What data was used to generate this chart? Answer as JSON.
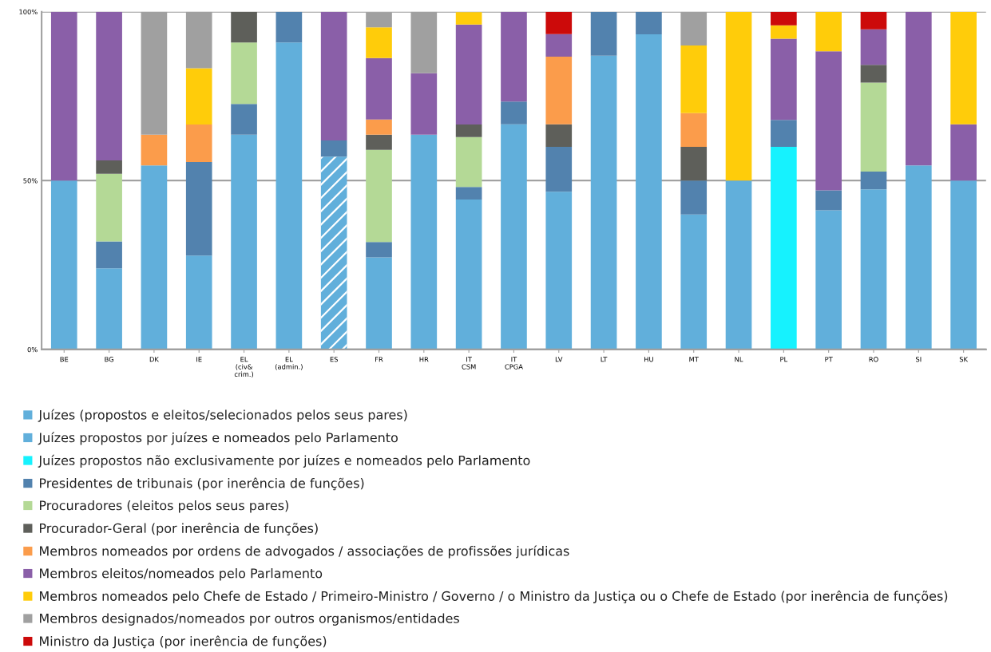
{
  "chart_data": {
    "type": "bar",
    "stacked": true,
    "categories": [
      "BE",
      "BG",
      "DK",
      "IE",
      "EL\n(civ&\ncrim.)",
      "EL\n(admin.)",
      "ES",
      "FR",
      "HR",
      "IT\nCSM",
      "IT\nCPGA",
      "LV",
      "LT",
      "HU",
      "MT",
      "NL",
      "PL",
      "PT",
      "RO",
      "SI",
      "SK"
    ],
    "ylim": [
      0,
      100
    ],
    "yticks": [
      {
        "value": 0,
        "label": "0%"
      },
      {
        "value": 50,
        "label": "50%"
      },
      {
        "value": 100,
        "label": "100%"
      }
    ],
    "grid": "y",
    "legend": "bottom left",
    "series": [
      {
        "name": "Juízes (propostos e eleitos/selecionados pelos seus pares)",
        "color": "#61afdb",
        "values": [
          50,
          24,
          54.5,
          27.8,
          63.6,
          90.9,
          null,
          27.3,
          63.6,
          44.4,
          66.7,
          46.7,
          87.0,
          93.3,
          40,
          50,
          null,
          41.2,
          47.4,
          54.5,
          50
        ]
      },
      {
        "name": "Juízes propostos por juízes e nomeados pelo Parlamento",
        "color": "#61afdb",
        "values": [
          null,
          null,
          null,
          null,
          null,
          null,
          57.1,
          null,
          null,
          null,
          null,
          null,
          null,
          null,
          null,
          null,
          null,
          null,
          null,
          null,
          null
        ]
      },
      {
        "name": "Juízes propostos não exclusivamente por juízes e nomeados pelo Parlamento",
        "color": "#16f2fe",
        "values": [
          null,
          null,
          null,
          null,
          null,
          null,
          null,
          null,
          null,
          null,
          null,
          null,
          null,
          null,
          null,
          null,
          60,
          null,
          null,
          null,
          null
        ]
      },
      {
        "name": "Presidentes de tribunais (por inerência de funções)",
        "color": "#5282ae",
        "values": [
          null,
          8,
          null,
          27.7,
          9.1,
          9.1,
          4.8,
          4.5,
          null,
          3.7,
          6.7,
          13.3,
          13.0,
          6.7,
          10,
          null,
          8,
          5.9,
          5.3,
          null,
          null
        ]
      },
      {
        "name": "Procuradores (eleitos pelos seus pares)",
        "color": "#b4d996",
        "values": [
          null,
          20,
          null,
          null,
          18.2,
          null,
          null,
          27.3,
          null,
          14.8,
          null,
          null,
          null,
          null,
          null,
          null,
          null,
          null,
          26.3,
          null,
          null
        ]
      },
      {
        "name": "Procurador-Geral (por inerência de funções)",
        "color": "#5e5f5a",
        "values": [
          null,
          4,
          null,
          null,
          9.1,
          null,
          null,
          4.5,
          null,
          3.7,
          null,
          6.7,
          null,
          null,
          10,
          null,
          null,
          null,
          5.3,
          null,
          null
        ]
      },
      {
        "name": "Membros nomeados por ordens de advogados / associações de profissões jurídicas",
        "color": "#fb9c4b",
        "values": [
          null,
          null,
          9.1,
          11.1,
          null,
          null,
          null,
          4.5,
          null,
          null,
          null,
          20,
          null,
          null,
          10,
          null,
          null,
          null,
          null,
          null,
          null
        ]
      },
      {
        "name": "Membros eleitos/nomeados pelo Parlamento",
        "color": "#8a5fa8",
        "values": [
          50,
          44,
          null,
          null,
          null,
          null,
          38.1,
          18.2,
          18.2,
          29.6,
          26.6,
          6.7,
          null,
          null,
          null,
          null,
          24,
          41.2,
          10.5,
          45.5,
          16.7
        ]
      },
      {
        "name": "Membros nomeados pelo Chefe de Estado / Primeiro-Ministro / Governo / o Ministro da Justiça ou o Chefe de Estado (por inerência de funções)",
        "color": "#ffcc0a",
        "values": [
          null,
          null,
          null,
          16.7,
          null,
          null,
          null,
          9.1,
          null,
          3.7,
          null,
          null,
          null,
          null,
          20,
          50,
          4,
          11.7,
          null,
          null,
          33.3
        ]
      },
      {
        "name": "Membros designados/nomeados por outros organismos/entidades",
        "color": "#a0a0a0",
        "values": [
          null,
          null,
          36.4,
          16.7,
          null,
          null,
          null,
          4.5,
          18.2,
          null,
          null,
          null,
          null,
          null,
          10,
          null,
          null,
          null,
          null,
          null,
          null
        ]
      },
      {
        "name": "Ministro da Justiça (por inerência de funções)",
        "color": "#cc0a0a",
        "values": [
          null,
          null,
          null,
          null,
          null,
          null,
          null,
          null,
          null,
          null,
          null,
          6.6,
          null,
          null,
          null,
          null,
          4,
          null,
          5.2,
          null,
          null
        ]
      }
    ]
  }
}
